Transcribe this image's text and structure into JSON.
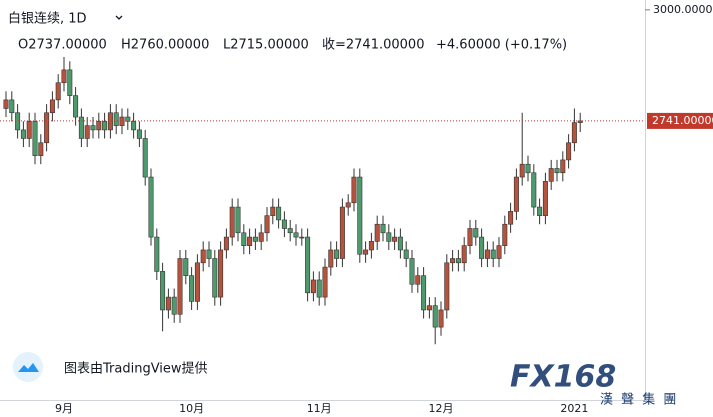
{
  "chart_data": {
    "type": "candlestick",
    "title": "白银连续, 1D",
    "subtitle": [
      "O2737.00000",
      "H2760.00000",
      "L2715.00000",
      "收=2741.00000",
      "+4.60000 (+0.17%)"
    ],
    "annotations": [
      "图表由TradingView提供",
      "FX168",
      "漢 聲 集 團"
    ],
    "categories": [
      null,
      null,
      null,
      null,
      null,
      null,
      null,
      null,
      null,
      null,
      "9月",
      null,
      null,
      null,
      null,
      null,
      null,
      null,
      null,
      null,
      null,
      null,
      null,
      null,
      null,
      null,
      null,
      null,
      null,
      null,
      null,
      null,
      "10月",
      null,
      null,
      null,
      null,
      null,
      null,
      null,
      null,
      null,
      null,
      null,
      null,
      null,
      null,
      null,
      null,
      null,
      null,
      null,
      null,
      null,
      "11月",
      null,
      null,
      null,
      null,
      null,
      null,
      null,
      null,
      null,
      null,
      null,
      null,
      null,
      null,
      null,
      null,
      null,
      null,
      null,
      null,
      "12月",
      null,
      null,
      null,
      null,
      null,
      null,
      null,
      null,
      null,
      null,
      null,
      null,
      null,
      null,
      null,
      null,
      null,
      null,
      null,
      null,
      null,
      null,
      "2021",
      null
    ],
    "open": [
      2770,
      2790,
      2760,
      2720,
      2700,
      2740,
      2660,
      2690,
      2760,
      2790,
      2830,
      2860,
      2800,
      2750,
      2700,
      2730,
      2720,
      2740,
      2720,
      2760,
      2730,
      2750,
      2740,
      2720,
      2700,
      2610,
      2470,
      2390,
      2300,
      2330,
      2290,
      2420,
      2380,
      2320,
      2410,
      2440,
      2420,
      2330,
      2440,
      2470,
      2540,
      2480,
      2450,
      2470,
      2460,
      2480,
      2520,
      2540,
      2510,
      2490,
      2480,
      2470,
      2470,
      2340,
      2370,
      2330,
      2400,
      2440,
      2420,
      2540,
      2550,
      2610,
      2430,
      2440,
      2460,
      2500,
      2480,
      2460,
      2470,
      2440,
      2420,
      2360,
      2380,
      2300,
      2310,
      2260,
      2300,
      2410,
      2420,
      2410,
      2450,
      2490,
      2470,
      2420,
      2440,
      2420,
      2450,
      2500,
      2530,
      2610,
      2640,
      2620,
      2540,
      2520,
      2600,
      2630,
      2620,
      2650,
      2690,
      2737
    ],
    "high": [
      2810,
      2810,
      2780,
      2740,
      2760,
      2760,
      2710,
      2780,
      2810,
      2850,
      2890,
      2880,
      2820,
      2770,
      2750,
      2750,
      2760,
      2760,
      2780,
      2780,
      2770,
      2770,
      2760,
      2740,
      2720,
      2630,
      2490,
      2410,
      2350,
      2350,
      2440,
      2440,
      2400,
      2430,
      2460,
      2460,
      2440,
      2460,
      2490,
      2560,
      2560,
      2500,
      2490,
      2490,
      2500,
      2540,
      2560,
      2560,
      2530,
      2510,
      2500,
      2490,
      2490,
      2390,
      2390,
      2420,
      2460,
      2460,
      2560,
      2570,
      2630,
      2630,
      2460,
      2480,
      2520,
      2520,
      2500,
      2490,
      2490,
      2460,
      2440,
      2400,
      2400,
      2330,
      2330,
      2320,
      2430,
      2440,
      2440,
      2470,
      2510,
      2510,
      2490,
      2460,
      2460,
      2470,
      2520,
      2550,
      2630,
      2760,
      2660,
      2640,
      2560,
      2620,
      2650,
      2650,
      2670,
      2710,
      2770,
      2760
    ],
    "low": [
      2750,
      2740,
      2700,
      2680,
      2680,
      2640,
      2640,
      2670,
      2740,
      2770,
      2810,
      2780,
      2730,
      2680,
      2680,
      2700,
      2700,
      2700,
      2700,
      2710,
      2710,
      2720,
      2700,
      2680,
      2590,
      2450,
      2370,
      2250,
      2280,
      2270,
      2270,
      2360,
      2300,
      2300,
      2390,
      2400,
      2310,
      2310,
      2420,
      2450,
      2460,
      2430,
      2430,
      2440,
      2440,
      2460,
      2500,
      2490,
      2470,
      2460,
      2450,
      2450,
      2320,
      2320,
      2310,
      2310,
      2380,
      2400,
      2400,
      2520,
      2530,
      2410,
      2410,
      2420,
      2440,
      2460,
      2440,
      2440,
      2420,
      2400,
      2340,
      2340,
      2280,
      2280,
      2220,
      2240,
      2280,
      2390,
      2390,
      2390,
      2430,
      2450,
      2400,
      2400,
      2400,
      2400,
      2430,
      2480,
      2510,
      2590,
      2600,
      2520,
      2500,
      2500,
      2580,
      2600,
      2600,
      2630,
      2670,
      2715
    ],
    "close": [
      2790,
      2760,
      2720,
      2700,
      2740,
      2660,
      2690,
      2760,
      2790,
      2830,
      2860,
      2800,
      2750,
      2700,
      2730,
      2720,
      2740,
      2720,
      2760,
      2730,
      2750,
      2740,
      2720,
      2700,
      2610,
      2470,
      2390,
      2300,
      2330,
      2290,
      2420,
      2380,
      2320,
      2410,
      2440,
      2420,
      2330,
      2440,
      2470,
      2540,
      2480,
      2450,
      2470,
      2460,
      2480,
      2520,
      2540,
      2510,
      2490,
      2480,
      2470,
      2470,
      2340,
      2370,
      2330,
      2400,
      2440,
      2420,
      2540,
      2550,
      2610,
      2430,
      2440,
      2460,
      2500,
      2480,
      2460,
      2470,
      2440,
      2420,
      2360,
      2380,
      2300,
      2310,
      2260,
      2300,
      2410,
      2420,
      2410,
      2450,
      2490,
      2470,
      2420,
      2440,
      2420,
      2450,
      2500,
      2530,
      2610,
      2640,
      2620,
      2540,
      2520,
      2600,
      2630,
      2620,
      2650,
      2690,
      2737,
      2741
    ],
    "up_color": "#b5533c",
    "down_color": "#4f9a6c",
    "ylim": [
      2090,
      3023
    ],
    "yticks": [
      {
        "value": 3000,
        "label": "3000.00000"
      }
    ],
    "last_price": {
      "value": 2741,
      "label": "2741.00000"
    }
  }
}
